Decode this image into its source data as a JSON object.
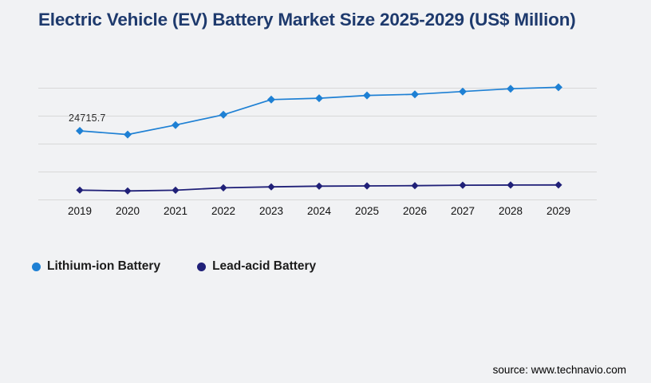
{
  "title": "Electric Vehicle (EV) Battery Market Size 2025-2029 (US$ Million)",
  "source": "source: www.technavio.com",
  "colors": {
    "background": "#f1f2f4",
    "title": "#1e3a6d",
    "gridline": "#d8d8d8",
    "axis_text": "#111111",
    "data_label_text": "#2b2b2b",
    "lithium_ion": "#1e80d4",
    "lead_acid": "#202078"
  },
  "legend": {
    "items": [
      {
        "label": "Lithium-ion Battery",
        "color": "#1e80d4"
      },
      {
        "label": "Lead-acid Battery",
        "color": "#202078"
      }
    ]
  },
  "chart_data": {
    "type": "line",
    "title": "Electric Vehicle (EV) Battery Market Size 2025-2029 (US$ Million)",
    "categories": [
      "2019",
      "2020",
      "2021",
      "2022",
      "2023",
      "2024",
      "2025",
      "2026",
      "2027",
      "2028",
      "2029"
    ],
    "series": [
      {
        "name": "Lithium-ion Battery",
        "color": "#1e80d4",
        "marker": "diamond",
        "values": [
          24715.7,
          23400,
          26800,
          30500,
          35900,
          36400,
          37400,
          37800,
          38800,
          39800,
          40300
        ]
      },
      {
        "name": "Lead-acid Battery",
        "color": "#202078",
        "marker": "diamond",
        "values": [
          3500,
          3200,
          3450,
          4300,
          4650,
          4900,
          5000,
          5100,
          5250,
          5300,
          5350
        ]
      }
    ],
    "data_labels": [
      {
        "series": 0,
        "index": 0,
        "text": "24715.7"
      }
    ],
    "xlabel": "",
    "ylabel": "",
    "ylim": [
      0,
      40000
    ],
    "y_gridline_step": 10000,
    "y_tick_labels_visible": false,
    "grid": "horizontal",
    "legend_position": "bottom-left"
  }
}
